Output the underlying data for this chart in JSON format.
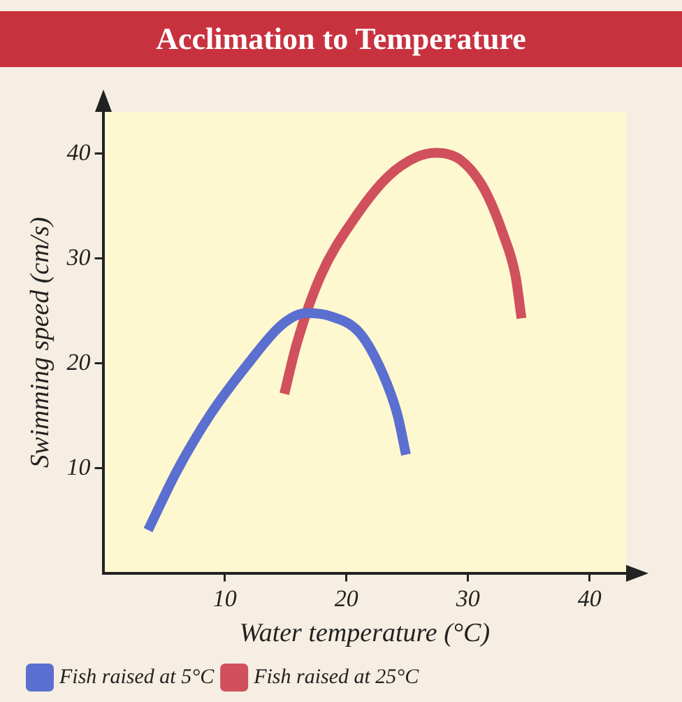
{
  "chart_data": {
    "type": "line",
    "title": "Acclimation to Temperature",
    "xlabel": "Water temperature (°C)",
    "ylabel": "Swimming speed (cm/s)",
    "xlim": [
      0,
      43
    ],
    "ylim": [
      0,
      44
    ],
    "xticks": [
      10,
      20,
      30,
      40
    ],
    "yticks": [
      10,
      20,
      30,
      40
    ],
    "grid": false,
    "legend": "bottom",
    "marker": "none",
    "line_style": "solid",
    "series": [
      {
        "name": "Fish raised at 5°C",
        "color": "#5b6fd0",
        "x": [
          3.7,
          6.0,
          8.8,
          12.0,
          14.7,
          16.7,
          18.7,
          21.1,
          23.0,
          24.2,
          24.9
        ],
        "values": [
          4.1,
          9.6,
          15.1,
          20.1,
          23.7,
          24.8,
          24.5,
          22.9,
          19.0,
          15.1,
          11.3
        ]
      },
      {
        "name": "Fish raised at 25°C",
        "color": "#d0505e",
        "x": [
          14.9,
          15.9,
          17.9,
          20.7,
          23.4,
          25.8,
          27.4,
          29.4,
          31.3,
          32.9,
          33.9,
          34.4
        ],
        "values": [
          17.1,
          21.8,
          28.4,
          33.9,
          37.8,
          39.7,
          40.1,
          39.4,
          36.7,
          32.3,
          28.4,
          24.3
        ]
      }
    ]
  }
}
